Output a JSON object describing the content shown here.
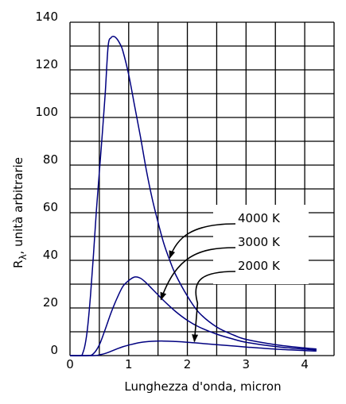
{
  "chart_data": {
    "type": "line",
    "xlabel": "Lunghezza d'onda, micron",
    "ylabel": {
      "main": "R",
      "sub": "λ",
      "rest": ", unità arbitrarie"
    },
    "xlim": [
      0,
      4.5
    ],
    "ylim": [
      0,
      140
    ],
    "x_ticks": [
      0,
      1,
      2,
      3,
      4
    ],
    "y_ticks": [
      0,
      20,
      40,
      60,
      80,
      100,
      120,
      140
    ],
    "grid": true,
    "colors": {
      "curve": "#000080",
      "grid": "#000000",
      "box": "#ffffff"
    },
    "series": [
      {
        "name": "4000 K",
        "x": [
          0.0,
          0.18,
          0.22,
          0.26,
          0.3,
          0.35,
          0.4,
          0.45,
          0.5,
          0.55,
          0.6,
          0.65,
          0.7,
          0.75,
          0.8,
          0.85,
          0.9,
          1.0,
          1.1,
          1.2,
          1.3,
          1.4,
          1.5,
          1.6,
          1.7,
          1.8,
          2.0,
          2.2,
          2.5,
          2.8,
          3.0,
          3.5,
          4.0,
          4.2
        ],
        "y": [
          0.0,
          0.0,
          1.2,
          4.9,
          11.8,
          25.4,
          42.3,
          61.0,
          77.0,
          93.0,
          110.0,
          130.0,
          133.5,
          134.0,
          133.0,
          131.0,
          128.0,
          118.0,
          105.0,
          92.0,
          78.0,
          66.0,
          56.0,
          47.0,
          40.0,
          34.0,
          25.0,
          18.0,
          12.0,
          8.5,
          6.8,
          4.6,
          3.2,
          2.8
        ]
      },
      {
        "name": "3000 K",
        "x": [
          0.0,
          0.3,
          0.4,
          0.5,
          0.6,
          0.7,
          0.8,
          0.9,
          1.0,
          1.1,
          1.2,
          1.3,
          1.4,
          1.5,
          1.6,
          1.8,
          2.0,
          2.2,
          2.5,
          2.8,
          3.0,
          3.5,
          4.0,
          4.2
        ],
        "y": [
          0.0,
          0.0,
          0.8,
          4.5,
          11.0,
          18.0,
          24.0,
          29.0,
          31.5,
          33.0,
          32.5,
          30.5,
          28.0,
          25.5,
          23.0,
          18.5,
          14.8,
          12.0,
          9.0,
          6.8,
          5.6,
          3.8,
          2.7,
          2.4
        ]
      },
      {
        "name": "2000 K",
        "x": [
          0.0,
          0.4,
          0.5,
          0.6,
          0.7,
          0.8,
          0.9,
          1.0,
          1.2,
          1.4,
          1.6,
          1.8,
          2.0,
          2.2,
          2.5,
          3.0,
          3.5,
          4.0,
          4.2
        ],
        "y": [
          0.0,
          0.0,
          0.3,
          0.9,
          1.8,
          2.8,
          3.7,
          4.4,
          5.5,
          6.0,
          6.1,
          5.9,
          5.6,
          5.2,
          4.6,
          3.6,
          2.7,
          2.1,
          1.9
        ]
      }
    ],
    "annotations": [
      {
        "text": "4000 K",
        "series": "4000 K",
        "tip": [
          1.7,
          41
        ],
        "label_at": [
          3.0,
          54.5
        ]
      },
      {
        "text": "3000 K",
        "series": "3000 K",
        "tip": [
          1.55,
          23.5
        ],
        "label_at": [
          3.0,
          45
        ]
      },
      {
        "text": "2000 K",
        "series": "2000 K",
        "tip": [
          2.12,
          5.2
        ],
        "label_at": [
          3.0,
          35
        ]
      }
    ]
  }
}
